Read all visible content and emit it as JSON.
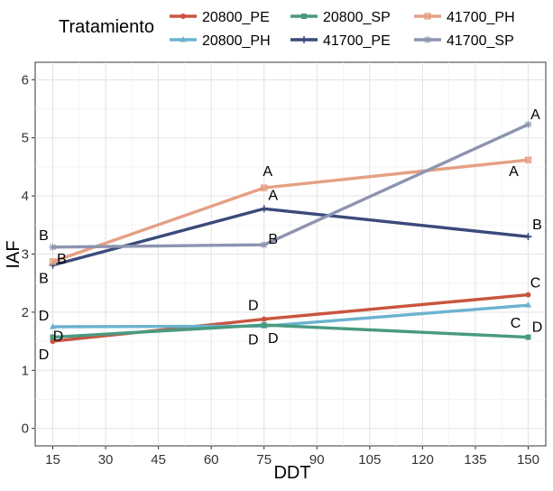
{
  "chart_data": {
    "type": "line",
    "xlabel": "DDT",
    "ylabel": "IAF",
    "x": [
      15,
      75,
      150
    ],
    "xlim": [
      10,
      155
    ],
    "ylim": [
      -0.3,
      6.3
    ],
    "xticks": [
      15,
      30,
      45,
      60,
      75,
      90,
      105,
      120,
      135,
      150
    ],
    "yticks": [
      0,
      1,
      2,
      3,
      4,
      5,
      6
    ],
    "grid": true,
    "legend": {
      "title": "Tratamiento",
      "position": "top",
      "columns": 3
    },
    "series": [
      {
        "name": "20800_PE",
        "color": "#C9553F",
        "marker": "circle",
        "values": [
          1.5,
          1.88,
          2.3
        ],
        "labels": [
          "D",
          "D",
          "C"
        ]
      },
      {
        "name": "20800_PH",
        "color": "#6BB3CF",
        "marker": "triangle",
        "values": [
          1.75,
          1.76,
          2.12
        ],
        "labels": [
          "D",
          "D",
          "C"
        ]
      },
      {
        "name": "20800_SP",
        "color": "#4A9A80",
        "marker": "square",
        "values": [
          1.57,
          1.78,
          1.57
        ],
        "labels": [
          "D",
          "D",
          "D"
        ]
      },
      {
        "name": "41700_PE",
        "color": "#3A4A7A",
        "marker": "plus",
        "values": [
          2.81,
          3.78,
          3.3
        ],
        "labels": [
          "B",
          "A",
          "B"
        ]
      },
      {
        "name": "41700_PH",
        "color": "#E5A084",
        "marker": "square-x",
        "values": [
          2.87,
          4.14,
          4.62
        ],
        "labels": [
          "B",
          "A",
          "A"
        ]
      },
      {
        "name": "41700_SP",
        "color": "#8C94B0",
        "marker": "asterisk",
        "values": [
          3.12,
          3.16,
          5.23
        ],
        "labels": [
          "B",
          "B",
          "A"
        ]
      }
    ]
  }
}
